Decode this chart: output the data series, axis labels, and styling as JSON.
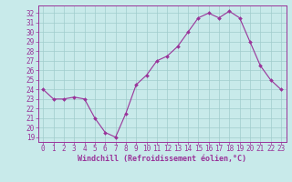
{
  "x": [
    0,
    1,
    2,
    3,
    4,
    5,
    6,
    7,
    8,
    9,
    10,
    11,
    12,
    13,
    14,
    15,
    16,
    17,
    18,
    19,
    20,
    21,
    22,
    23
  ],
  "y": [
    24.0,
    23.0,
    23.0,
    23.2,
    23.0,
    21.0,
    19.5,
    19.0,
    21.5,
    24.5,
    25.5,
    27.0,
    27.5,
    28.5,
    30.0,
    31.5,
    32.0,
    31.5,
    32.2,
    31.5,
    29.0,
    26.5,
    25.0,
    24.0
  ],
  "x_labels": [
    "0",
    "1",
    "2",
    "3",
    "4",
    "5",
    "6",
    "7",
    "8",
    "9",
    "10",
    "11",
    "12",
    "13",
    "14",
    "15",
    "16",
    "17",
    "18",
    "19",
    "20",
    "21",
    "22",
    "23"
  ],
  "y_ticks": [
    19,
    20,
    21,
    22,
    23,
    24,
    25,
    26,
    27,
    28,
    29,
    30,
    31,
    32
  ],
  "xlabel": "Windchill (Refroidissement éolien,°C)",
  "line_color": "#993399",
  "marker_color": "#993399",
  "bg_color": "#c8eaea",
  "grid_color": "#a0cccc",
  "ylim": [
    18.5,
    32.8
  ],
  "xlim": [
    -0.5,
    23.5
  ],
  "tick_fontsize": 5.5,
  "xlabel_fontsize": 6.0
}
